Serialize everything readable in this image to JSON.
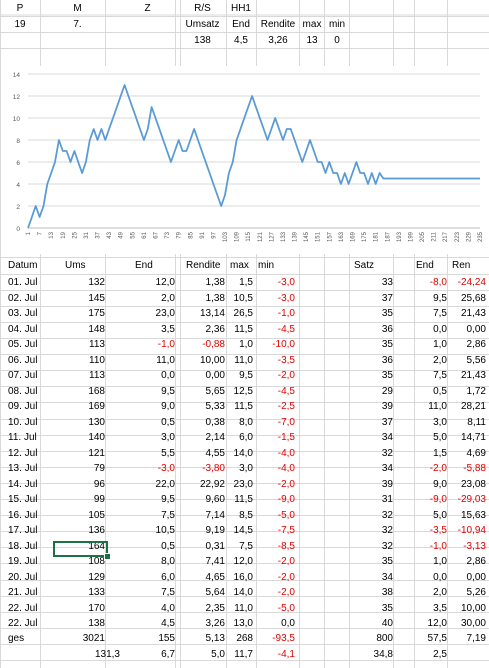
{
  "header": {
    "labels": [
      "P",
      "M",
      "Z",
      "R/S",
      "HH1"
    ],
    "row2": [
      "19",
      "7."
    ],
    "sub_labels": [
      "Umsatz",
      "End",
      "Rendite",
      "max",
      "min"
    ],
    "sub_values": [
      "138",
      "4,5",
      "3,26",
      "13",
      "0"
    ]
  },
  "columns": [
    "Datum",
    "Ums",
    "End",
    "Rendite",
    "max",
    "min",
    "Satz",
    "End",
    "Ren"
  ],
  "rows": [
    {
      "datum": "01. Jul",
      "ums": "132",
      "end": "12,0",
      "rendite": "1,38",
      "max": "1,5",
      "min": "-3,0",
      "satz": "33",
      "end2": "-8,0",
      "ren": "-24,24"
    },
    {
      "datum": "02. Jul",
      "ums": "145",
      "end": "2,0",
      "rendite": "1,38",
      "max": "10,5",
      "min": "-3,0",
      "satz": "37",
      "end2": "9,5",
      "ren": "25,68"
    },
    {
      "datum": "03. Jul",
      "ums": "175",
      "end": "23,0",
      "rendite": "13,14",
      "max": "26,5",
      "min": "-1,0",
      "satz": "35",
      "end2": "7,5",
      "ren": "21,43"
    },
    {
      "datum": "04. Jul",
      "ums": "148",
      "end": "3,5",
      "rendite": "2,36",
      "max": "11,5",
      "min": "-4,5",
      "satz": "36",
      "end2": "0,0",
      "ren": "0,00"
    },
    {
      "datum": "05. Jul",
      "ums": "113",
      "end": "-1,0",
      "rendite": "-0,88",
      "max": "1,0",
      "min": "-10,0",
      "satz": "35",
      "end2": "1,0",
      "ren": "2,86"
    },
    {
      "datum": "06. Jul",
      "ums": "110",
      "end": "11,0",
      "rendite": "10,00",
      "max": "11,0",
      "min": "-3,5",
      "satz": "36",
      "end2": "2,0",
      "ren": "5,56"
    },
    {
      "datum": "07. Jul",
      "ums": "113",
      "end": "0,0",
      "rendite": "0,00",
      "max": "9,5",
      "min": "-2,0",
      "satz": "35",
      "end2": "7,5",
      "ren": "21,43"
    },
    {
      "datum": "08. Jul",
      "ums": "168",
      "end": "9,5",
      "rendite": "5,65",
      "max": "12,5",
      "min": "-4,5",
      "satz": "29",
      "end2": "0,5",
      "ren": "1,72"
    },
    {
      "datum": "09. Jul",
      "ums": "169",
      "end": "9,0",
      "rendite": "5,33",
      "max": "11,5",
      "min": "-2,5",
      "satz": "39",
      "end2": "11,0",
      "ren": "28,21"
    },
    {
      "datum": "10. Jul",
      "ums": "130",
      "end": "0,5",
      "rendite": "0,38",
      "max": "8,0",
      "min": "-7,0",
      "satz": "37",
      "end2": "3,0",
      "ren": "8,11"
    },
    {
      "datum": "11. Jul",
      "ums": "140",
      "end": "3,0",
      "rendite": "2,14",
      "max": "6,0",
      "min": "-1,5",
      "satz": "34",
      "end2": "5,0",
      "ren": "14,71"
    },
    {
      "datum": "12. Jul",
      "ums": "121",
      "end": "5,5",
      "rendite": "4,55",
      "max": "14,0",
      "min": "-4,0",
      "satz": "32",
      "end2": "1,5",
      "ren": "4,69"
    },
    {
      "datum": "13. Jul",
      "ums": "79",
      "end": "-3,0",
      "rendite": "-3,80",
      "max": "3,0",
      "min": "-4,0",
      "satz": "34",
      "end2": "-2,0",
      "ren": "-5,88"
    },
    {
      "datum": "14. Jul",
      "ums": "96",
      "end": "22,0",
      "rendite": "22,92",
      "max": "23,0",
      "min": "-2,0",
      "satz": "39",
      "end2": "9,0",
      "ren": "23,08"
    },
    {
      "datum": "15. Jul",
      "ums": "99",
      "end": "9,5",
      "rendite": "9,60",
      "max": "11,5",
      "min": "-9,0",
      "satz": "31",
      "end2": "-9,0",
      "ren": "-29,03"
    },
    {
      "datum": "16. Jul",
      "ums": "105",
      "end": "7,5",
      "rendite": "7,14",
      "max": "8,5",
      "min": "-5,0",
      "satz": "32",
      "end2": "5,0",
      "ren": "15,63"
    },
    {
      "datum": "17. Jul",
      "ums": "136",
      "end": "10,5",
      "rendite": "9,19",
      "max": "14,5",
      "min": "-7,5",
      "satz": "32",
      "end2": "-3,5",
      "ren": "-10,94"
    },
    {
      "datum": "18. Jul",
      "ums": "164",
      "end": "0,5",
      "rendite": "0,31",
      "max": "7,5",
      "min": "-8,5",
      "satz": "32",
      "end2": "-1,0",
      "ren": "-3,13"
    },
    {
      "datum": "19. Jul",
      "ums": "108",
      "end": "8,0",
      "rendite": "7,41",
      "max": "12,0",
      "min": "-2,0",
      "satz": "35",
      "end2": "1,0",
      "ren": "2,86"
    },
    {
      "datum": "20. Jul",
      "ums": "129",
      "end": "6,0",
      "rendite": "4,65",
      "max": "16,0",
      "min": "-2,0",
      "satz": "34",
      "end2": "0,0",
      "ren": "0,00"
    },
    {
      "datum": "21. Jul",
      "ums": "133",
      "end": "7,5",
      "rendite": "5,64",
      "max": "14,0",
      "min": "-2,0",
      "satz": "38",
      "end2": "2,0",
      "ren": "5,26"
    },
    {
      "datum": "22. Jul",
      "ums": "170",
      "end": "4,0",
      "rendite": "2,35",
      "max": "11,0",
      "min": "-5,0",
      "satz": "35",
      "end2": "3,5",
      "ren": "10,00"
    },
    {
      "datum": "22. Jul",
      "ums": "138",
      "end": "4,5",
      "rendite": "3,26",
      "max": "13,0",
      "min": "0,0",
      "satz": "40",
      "end2": "12,0",
      "ren": "30,00"
    }
  ],
  "totals": {
    "label": "ges",
    "ums": "3021",
    "end": "155",
    "rendite": "5,13",
    "max": "268",
    "min": "-93,5",
    "satz": "800",
    "end2": "57,5",
    "ren": "7,19"
  },
  "averages": {
    "ums": "131,3",
    "end": "6,7",
    "rendite": "5,0",
    "max": "11,7",
    "min": "-4,1",
    "satz": "34,8",
    "end2": "2,5"
  },
  "chart_data": {
    "type": "line",
    "title": "",
    "y_ticks": [
      "0",
      "2",
      "4",
      "6",
      "8",
      "10",
      "12",
      "14"
    ],
    "ylim": [
      0,
      14
    ],
    "x_ticks": [
      "1",
      "7",
      "13",
      "19",
      "25",
      "31",
      "37",
      "43",
      "49",
      "55",
      "61",
      "67",
      "73",
      "79",
      "85",
      "91",
      "97",
      "103",
      "109",
      "115",
      "121",
      "127",
      "133",
      "139",
      "145",
      "151",
      "157",
      "163",
      "169",
      "175",
      "181",
      "187",
      "193",
      "199",
      "205",
      "211",
      "217",
      "223",
      "229",
      "235"
    ],
    "xlim": [
      1,
      235
    ],
    "grid": true,
    "color": "#5b9bd5",
    "series": [
      {
        "x": [
          1,
          3,
          5,
          7,
          9,
          11,
          13,
          15,
          17,
          19,
          21,
          23,
          25,
          27,
          29,
          31,
          33,
          35,
          37,
          39,
          41,
          43,
          45,
          47,
          49,
          51,
          53,
          55,
          57,
          59,
          61,
          63,
          65,
          67,
          69,
          71,
          73,
          75,
          77,
          79,
          81,
          83,
          85,
          87,
          89,
          91,
          93,
          95,
          97,
          99,
          101,
          103,
          105,
          107,
          109,
          111,
          113,
          115,
          117,
          119,
          121,
          123,
          125,
          127,
          129,
          131,
          133,
          135,
          137,
          139,
          141,
          143,
          145,
          147,
          149,
          151,
          153,
          155,
          157,
          159,
          161,
          163,
          165,
          167,
          169,
          171,
          173,
          175,
          177,
          179,
          181,
          183,
          185,
          187,
          189,
          191,
          193,
          195,
          199,
          205,
          211,
          217,
          223,
          229,
          235
        ],
        "y": [
          0,
          1,
          2,
          1,
          2,
          4,
          5,
          6,
          8,
          7,
          7,
          6,
          7,
          6,
          5,
          6,
          8,
          9,
          8,
          9,
          8,
          9,
          10,
          11,
          12,
          13,
          12,
          11,
          10,
          9,
          8,
          9,
          11,
          10,
          9,
          8,
          7,
          6,
          7,
          8,
          7,
          7,
          8,
          9,
          8,
          7,
          6,
          5,
          4,
          3,
          2,
          3,
          5,
          6,
          8,
          9,
          10,
          11,
          12,
          11,
          10,
          9,
          8,
          9,
          10,
          9,
          8,
          9,
          9,
          8,
          7,
          6,
          7,
          8,
          7,
          6,
          6,
          5,
          6,
          5,
          5,
          4,
          5,
          4,
          5,
          6,
          5,
          5,
          4,
          5,
          4,
          5,
          4.5,
          4.5,
          4.5,
          4.5,
          4.5,
          4.5,
          4.5,
          4.5,
          4.5,
          4.5,
          4.5,
          4.5,
          4.5
        ]
      }
    ]
  }
}
